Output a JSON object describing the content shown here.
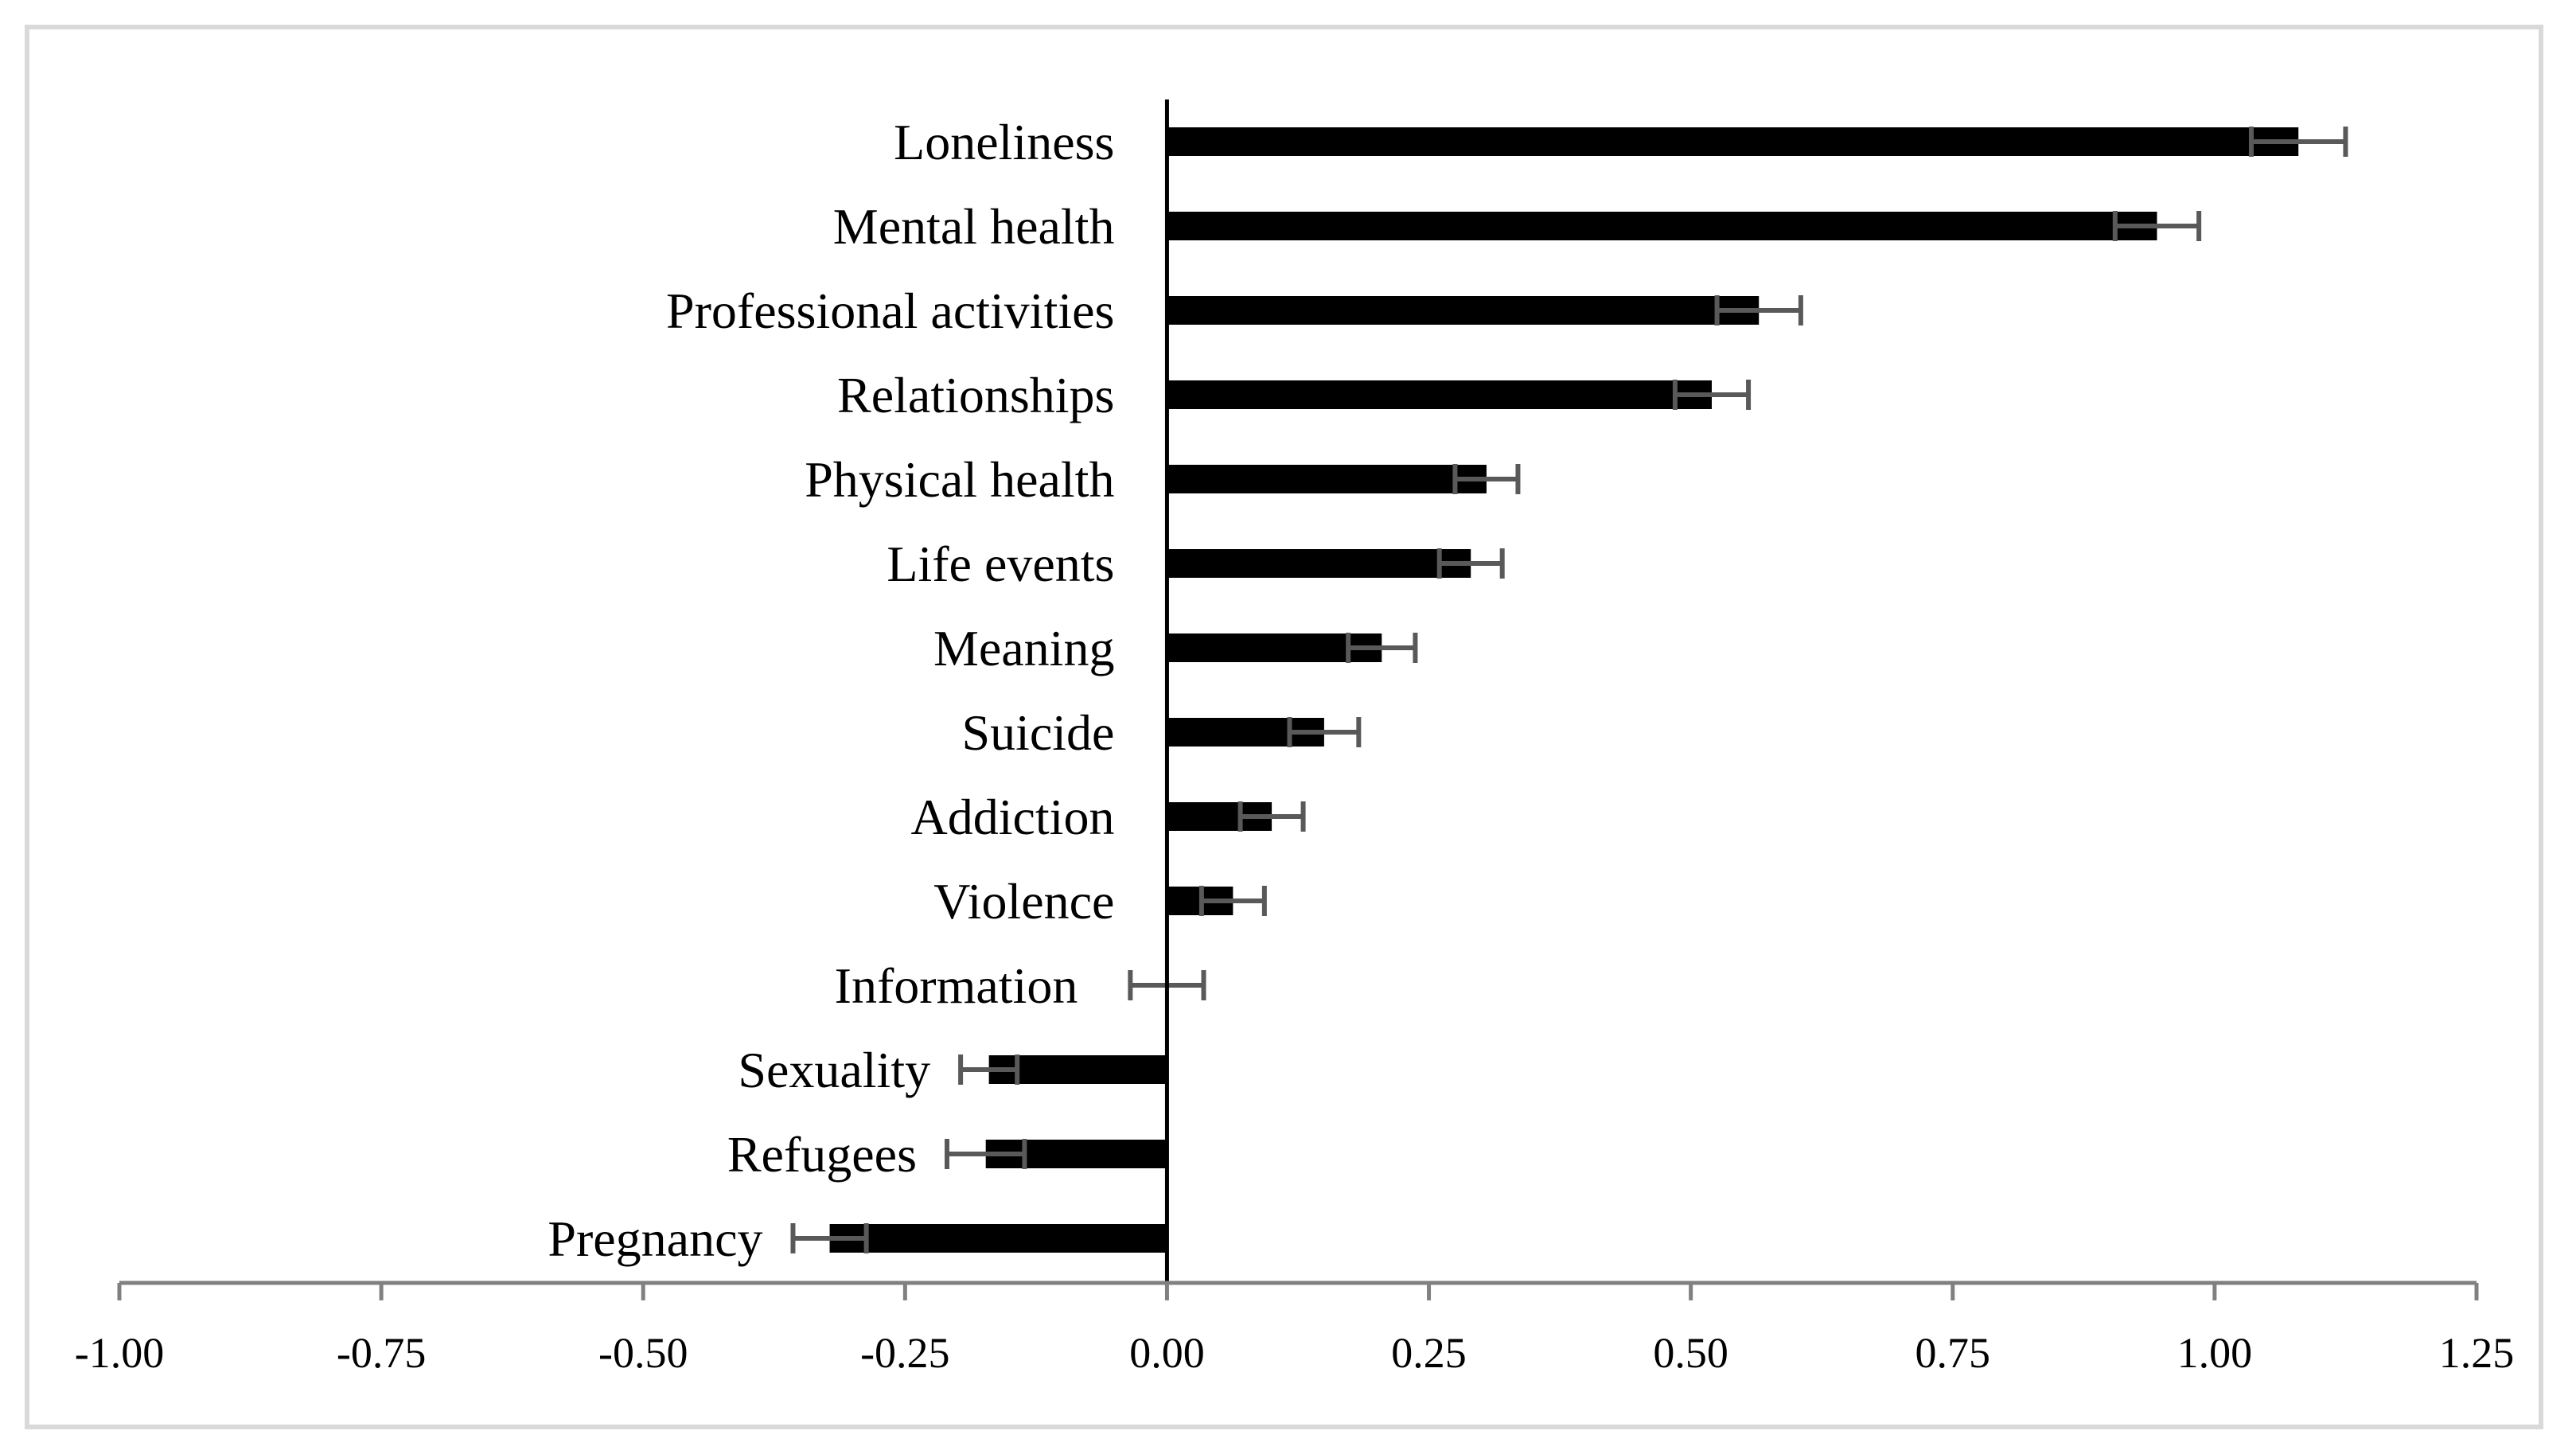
{
  "chart_data": {
    "type": "bar",
    "orientation": "horizontal",
    "title": "",
    "xlabel": "",
    "ylabel": "",
    "xlim": [
      -1.0,
      1.25
    ],
    "grid": false,
    "legend": "none",
    "categories": [
      "Loneliness",
      "Mental health",
      "Professional activities",
      "Relationships",
      "Physical health",
      "Life events",
      "Meaning",
      "Suicide",
      "Addiction",
      "Violence",
      "Information",
      "Sexuality",
      "Refugees",
      "Pregnancy"
    ],
    "values": [
      1.08,
      0.945,
      0.565,
      0.52,
      0.305,
      0.29,
      0.205,
      0.15,
      0.1,
      0.063,
      0.0,
      -0.17,
      -0.173,
      -0.322
    ],
    "error": [
      0.045,
      0.04,
      0.04,
      0.035,
      0.03,
      0.03,
      0.032,
      0.033,
      0.03,
      0.03,
      0.035,
      0.027,
      0.037,
      0.035
    ],
    "x_ticks": [
      "-1.00",
      "-0.75",
      "-0.50",
      "-0.25",
      "0.00",
      "0.25",
      "0.50",
      "0.75",
      "1.00",
      "1.25"
    ],
    "tick_values": [
      -1.0,
      -0.75,
      -0.5,
      -0.25,
      0.0,
      0.25,
      0.5,
      0.75,
      1.0,
      1.25
    ],
    "colors": {
      "bar": "#000000",
      "error_bar": "#595959",
      "axis": "#808080",
      "zero_line": "#000000",
      "frame": "#d9d9d9"
    }
  }
}
